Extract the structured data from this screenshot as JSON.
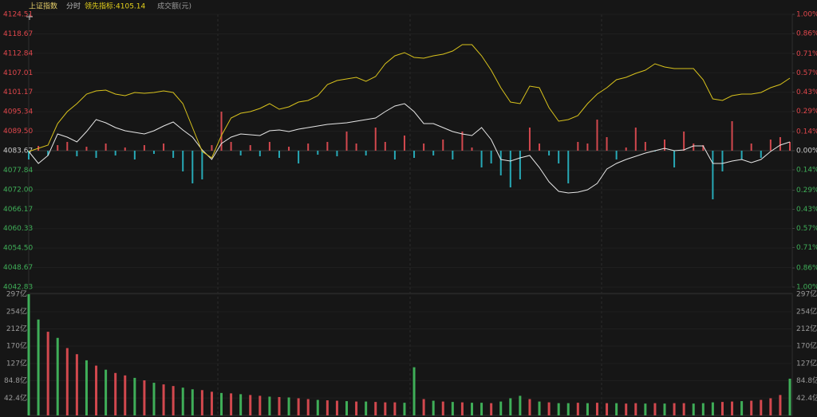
{
  "chart_data": [
    {
      "type": "line",
      "title": "上证指数",
      "mode": "分时",
      "indicator": "领先指标:4105.14",
      "ylim": [
        4042.83,
        4124.51
      ],
      "yticks": [
        4124.51,
        4118.67,
        4112.84,
        4107.01,
        4101.17,
        4095.34,
        4089.5,
        4083.67,
        4077.84,
        4072,
        4066.17,
        4060.33,
        4054.5,
        4048.67,
        4042.83
      ],
      "ytick_labels": [
        "4124.51",
        "4118.67",
        "4112.84",
        "4107.01",
        "4101.17",
        "4095.34",
        "4089.50",
        "4083.67",
        "4077.84",
        "4072.00",
        "4066.17",
        "4060.33",
        "4054.50",
        "4048.67",
        "4042.83"
      ],
      "y2lim": [
        -1,
        1
      ],
      "y2ticks": [
        {
          "value": 1,
          "label": "1.00%"
        },
        {
          "value": 0.86,
          "label": "0.86%"
        },
        {
          "value": 0.71,
          "label": "0.71%"
        },
        {
          "value": 0.57,
          "label": "0.57%"
        },
        {
          "value": 0.43,
          "label": "0.43%"
        },
        {
          "value": 0.29,
          "label": "0.29%"
        },
        {
          "value": 0.14,
          "label": "0.14%"
        },
        {
          "value": 0,
          "label": "0.00%"
        },
        {
          "value": -0.14,
          "label": "0.14%"
        },
        {
          "value": -0.29,
          "label": "0.29%"
        },
        {
          "value": -0.43,
          "label": "0.43%"
        },
        {
          "value": -0.57,
          "label": "0.57%"
        },
        {
          "value": -0.71,
          "label": "0.71%"
        },
        {
          "value": -0.86,
          "label": "0.86%"
        },
        {
          "value": -1,
          "label": "1.00%"
        }
      ],
      "baseline": 4083.67,
      "up_color": "#e0474c",
      "down_color": "#3fae58",
      "flat_color": "#cccccc",
      "series": [
        {
          "color": "#e6e6e6",
          "values": [
            4083.43,
            4079.85,
            4082.24,
            4088.69,
            4087.73,
            4086.3,
            4089.4,
            4092.98,
            4092.03,
            4090.6,
            4089.64,
            4089.16,
            4088.69,
            4089.64,
            4091.07,
            4092.27,
            4089.88,
            4087.73,
            4083.91,
            4081.04,
            4085.82,
            4087.73,
            4088.69,
            4088.45,
            4088.21,
            4089.64,
            4089.88,
            4089.4,
            4090.12,
            4090.6,
            4091.07,
            4091.55,
            4091.79,
            4092.03,
            4092.51,
            4092.98,
            4093.46,
            4095.37,
            4097.04,
            4097.76,
            4095.37,
            4091.79,
            4091.79,
            4090.6,
            4089.4,
            4088.69,
            4088.21,
            4090.6,
            4087.01,
            4081.04,
            4080.57,
            4081.52,
            4082.24,
            4078.66,
            4074.36,
            4071.49,
            4071.01,
            4071.25,
            4071.97,
            4073.88,
            4078.18,
            4079.85,
            4081.04,
            4082.0,
            4082.95,
            4083.67,
            4084.39,
            4083.67,
            4083.91,
            4085.1,
            4085.1,
            4079.85,
            4079.85,
            4080.57,
            4081.04,
            4080.09,
            4081.04,
            4083.43,
            4085.34,
            4086.3
          ]
        },
        {
          "color": "#d8c21c",
          "values": [
            4083.43,
            4084.39,
            4085.34,
            4091.79,
            4095.37,
            4097.76,
            4100.63,
            4101.58,
            4101.82,
            4100.63,
            4100.15,
            4101.1,
            4100.87,
            4101.1,
            4101.58,
            4101.1,
            4097.76,
            4090.6,
            4083.43,
            4081.52,
            4088.21,
            4093.46,
            4094.9,
            4095.37,
            4096.33,
            4097.76,
            4096.09,
            4096.81,
            4098.24,
            4098.72,
            4100.15,
            4103.49,
            4104.69,
            4105.16,
            4105.64,
            4104.45,
            4105.88,
            4109.7,
            4112.09,
            4113.05,
            4111.61,
            4111.37,
            4112.09,
            4112.57,
            4113.52,
            4115.43,
            4115.43,
            4112.09,
            4107.79,
            4102.54,
            4098.24,
            4097.76,
            4103.02,
            4102.54,
            4096.57,
            4092.51,
            4092.98,
            4094.18,
            4097.76,
            4100.63,
            4102.54,
            4104.93,
            4105.64,
            4106.84,
            4107.79,
            4109.7,
            4108.75,
            4108.27,
            4108.27,
            4108.27,
            4104.93,
            4099.19,
            4098.72,
            4100.15,
            4100.63,
            4100.63,
            4101.1,
            4102.54,
            4103.49,
            4105.4
          ]
        }
      ],
      "bars": {
        "up_color": "#d2484e",
        "down_color": "#27a9b6",
        "values": [
          4081.04,
          4085.1,
          4082.24,
          4085.34,
          4086.3,
          4082.0,
          4084.86,
          4081.52,
          4085.82,
          4082.24,
          4084.63,
          4081.04,
          4085.34,
          4082.71,
          4085.82,
          4081.52,
          4077.46,
          4073.88,
          4075.07,
          4085.34,
          4095.37,
          4086.3,
          4082.24,
          4085.34,
          4082.0,
          4086.3,
          4081.52,
          4084.86,
          4079.85,
          4085.82,
          4082.48,
          4086.3,
          4082.0,
          4089.4,
          4085.82,
          4082.24,
          4090.6,
          4086.3,
          4081.04,
          4088.21,
          4081.52,
          4085.82,
          4082.24,
          4087.01,
          4081.04,
          4089.4,
          4084.63,
          4078.66,
          4079.85,
          4076.27,
          4072.68,
          4075.07,
          4090.6,
          4085.82,
          4082.24,
          4079.85,
          4073.88,
          4086.3,
          4085.82,
          4092.98,
          4087.73,
          4081.04,
          4084.63,
          4090.6,
          4086.3,
          4083.43,
          4087.01,
          4078.66,
          4089.4,
          4085.82,
          4085.34,
          4069.1,
          4077.46,
          4092.51,
          4081.04,
          4085.82,
          4081.52,
          4087.01,
          4087.73,
          4086.3
        ]
      }
    },
    {
      "type": "bar",
      "title": "成交额(元)",
      "ylim": [
        0,
        297
      ],
      "yticks": [
        {
          "value": 297,
          "label": "297亿"
        },
        {
          "value": 254,
          "label": "254亿"
        },
        {
          "value": 212,
          "label": "212亿"
        },
        {
          "value": 170,
          "label": "170亿"
        },
        {
          "value": 127,
          "label": "127亿"
        },
        {
          "value": 84.8,
          "label": "84.8亿"
        },
        {
          "value": 42.4,
          "label": "42.4亿"
        }
      ],
      "colors": {
        "up": "#d2484e",
        "down": "#3fae58"
      },
      "directions": [
        "down",
        "down",
        "up",
        "down",
        "up",
        "up",
        "down",
        "up",
        "down",
        "up",
        "up",
        "down",
        "up",
        "down",
        "up",
        "up",
        "down",
        "down",
        "up",
        "up",
        "down",
        "up",
        "down",
        "up",
        "up",
        "down",
        "up",
        "down",
        "up",
        "up",
        "down",
        "up",
        "up",
        "down",
        "up",
        "down",
        "up",
        "up",
        "up",
        "down",
        "down",
        "up",
        "down",
        "up",
        "down",
        "up",
        "down",
        "down",
        "up",
        "down",
        "down",
        "down",
        "up",
        "down",
        "up",
        "down",
        "down",
        "up",
        "down",
        "up",
        "up",
        "down",
        "up",
        "up",
        "down",
        "up",
        "down",
        "up",
        "up",
        "down",
        "down",
        "down",
        "up",
        "up",
        "down",
        "up",
        "up",
        "up",
        "up",
        "down"
      ],
      "values": [
        297,
        235,
        205,
        190,
        165,
        150,
        135,
        122,
        112,
        104,
        98,
        92,
        86,
        80,
        76,
        72,
        68,
        64,
        62,
        58,
        55,
        54,
        52,
        50,
        48,
        46,
        45,
        44,
        42,
        40,
        38,
        37,
        36,
        35,
        34,
        34,
        33,
        32,
        32,
        31,
        118,
        40,
        36,
        34,
        33,
        32,
        31,
        31,
        30,
        34,
        42,
        48,
        40,
        34,
        32,
        30,
        30,
        31,
        30,
        31,
        30,
        30,
        29,
        30,
        29,
        30,
        29,
        30,
        30,
        29,
        30,
        32,
        33,
        34,
        35,
        36,
        38,
        42,
        50,
        90
      ]
    }
  ]
}
